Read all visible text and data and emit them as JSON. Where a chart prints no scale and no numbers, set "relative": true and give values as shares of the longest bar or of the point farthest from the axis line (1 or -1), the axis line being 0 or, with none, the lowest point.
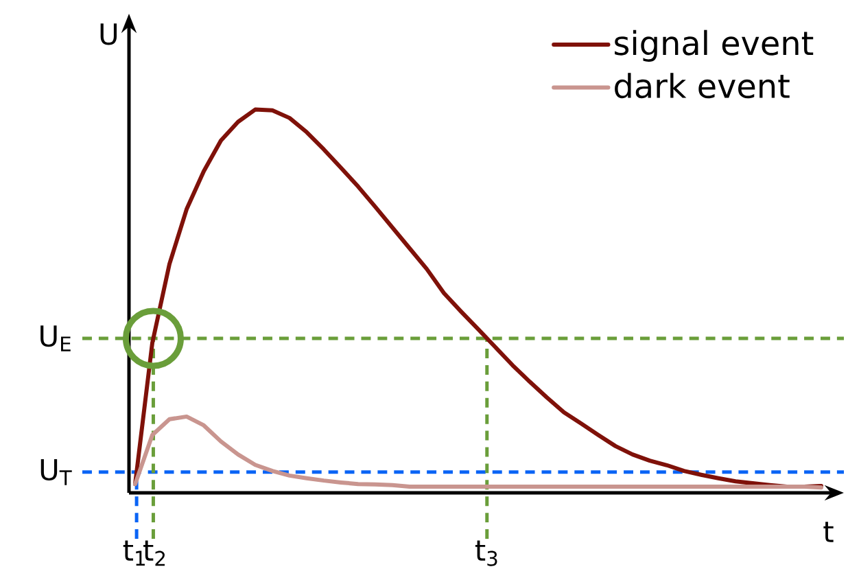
{
  "chart_data": {
    "type": "line",
    "relative": true,
    "xlabel": "t",
    "ylabel": "U",
    "legend": "top right",
    "categories": [
      null,
      null,
      null,
      null,
      null,
      null,
      null,
      null,
      null,
      null,
      null,
      null,
      null,
      null,
      null,
      null,
      null,
      null,
      null,
      null,
      null,
      null,
      null,
      null,
      null,
      null,
      null,
      null,
      null,
      null,
      null,
      null,
      null,
      null,
      null,
      null,
      null,
      null,
      null,
      null,
      null
    ],
    "series": [
      {
        "name": "signal event",
        "color": "#7f1109",
        "values": [
          0.023,
          0.391,
          0.597,
          0.74,
          0.839,
          0.919,
          0.968,
          1,
          0.998,
          0.978,
          0.941,
          0.896,
          0.848,
          0.799,
          0.746,
          0.692,
          0.638,
          0.584,
          0.521,
          0.473,
          0.427,
          0.38,
          0.333,
          0.29,
          0.249,
          0.21,
          0.181,
          0.151,
          0.122,
          0.1,
          0.084,
          0.072,
          0.057,
          0.047,
          0.038,
          0.03,
          0.025,
          0.02,
          0.016,
          0.016,
          0.018
        ]
      },
      {
        "name": "dark event",
        "color": "#c9958f",
        "values": [
          0.023,
          0.151,
          0.192,
          0.199,
          0.176,
          0.134,
          0.1,
          0.073,
          0.057,
          0.045,
          0.038,
          0.032,
          0.027,
          0.023,
          0.022,
          0.02,
          0.016,
          0.016,
          0.016,
          0.016,
          0.016,
          0.016,
          0.016,
          0.016,
          0.016,
          0.016,
          0.016,
          0.016,
          0.016,
          0.016,
          0.016,
          0.016,
          0.016,
          0.016,
          0.016,
          0.016,
          0.016,
          0.016,
          0.016,
          0.016,
          0.014
        ]
      }
    ],
    "ref_lines": [
      {
        "axis": "y",
        "value": 0.403,
        "label": "U$_{E}$",
        "color": "#6a9e3a",
        "line_style": "dashed"
      },
      {
        "axis": "y",
        "value": 0.054,
        "label": "U$_{T}$",
        "color": "#0a64f5",
        "line_style": "dashed"
      }
    ],
    "annotations": [
      "t$_{1}$",
      "t$_{2}$",
      "t$_{3}$"
    ]
  }
}
